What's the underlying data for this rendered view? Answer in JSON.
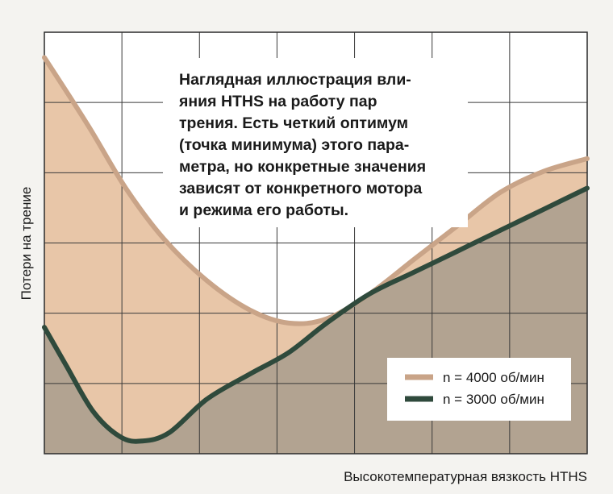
{
  "chart_data": {
    "type": "area",
    "title": "",
    "xlabel": "Высокотемпературная вязкость HTHS",
    "ylabel": "Потери на трение",
    "xlim": [
      0,
      100
    ],
    "ylim": [
      0,
      100
    ],
    "grid": true,
    "legend_position": "bottom-right",
    "annotation": [
      "Наглядная иллюстрация вли-",
      "яния HTHS на работу пар",
      "трения. Есть четкий оптимум",
      "(точка минимума) этого пара-",
      "метра, но конкретные значения",
      "зависят от конкретного мотора",
      "и режима его работы."
    ],
    "series": [
      {
        "name": "n = 4000 об/мин",
        "color": "#c9a488",
        "fill": "#e8c6a8",
        "x": [
          0,
          8,
          15,
          22,
          30,
          38,
          45,
          52,
          60,
          68,
          76,
          84,
          92,
          100
        ],
        "y": [
          94,
          78,
          63,
          51,
          41,
          34,
          31,
          32,
          38,
          46,
          54,
          62,
          67,
          70
        ]
      },
      {
        "name": "n = 3000 об/мин",
        "color": "#2f4a3c",
        "fill": "#b2a391",
        "x": [
          0,
          4,
          9,
          14,
          18,
          23,
          30,
          38,
          45,
          52,
          60,
          68,
          76,
          84,
          92,
          100
        ],
        "y": [
          30,
          21,
          10,
          4,
          3,
          5,
          13,
          19,
          24,
          31,
          38,
          43,
          48,
          53,
          58,
          63
        ]
      }
    ]
  }
}
